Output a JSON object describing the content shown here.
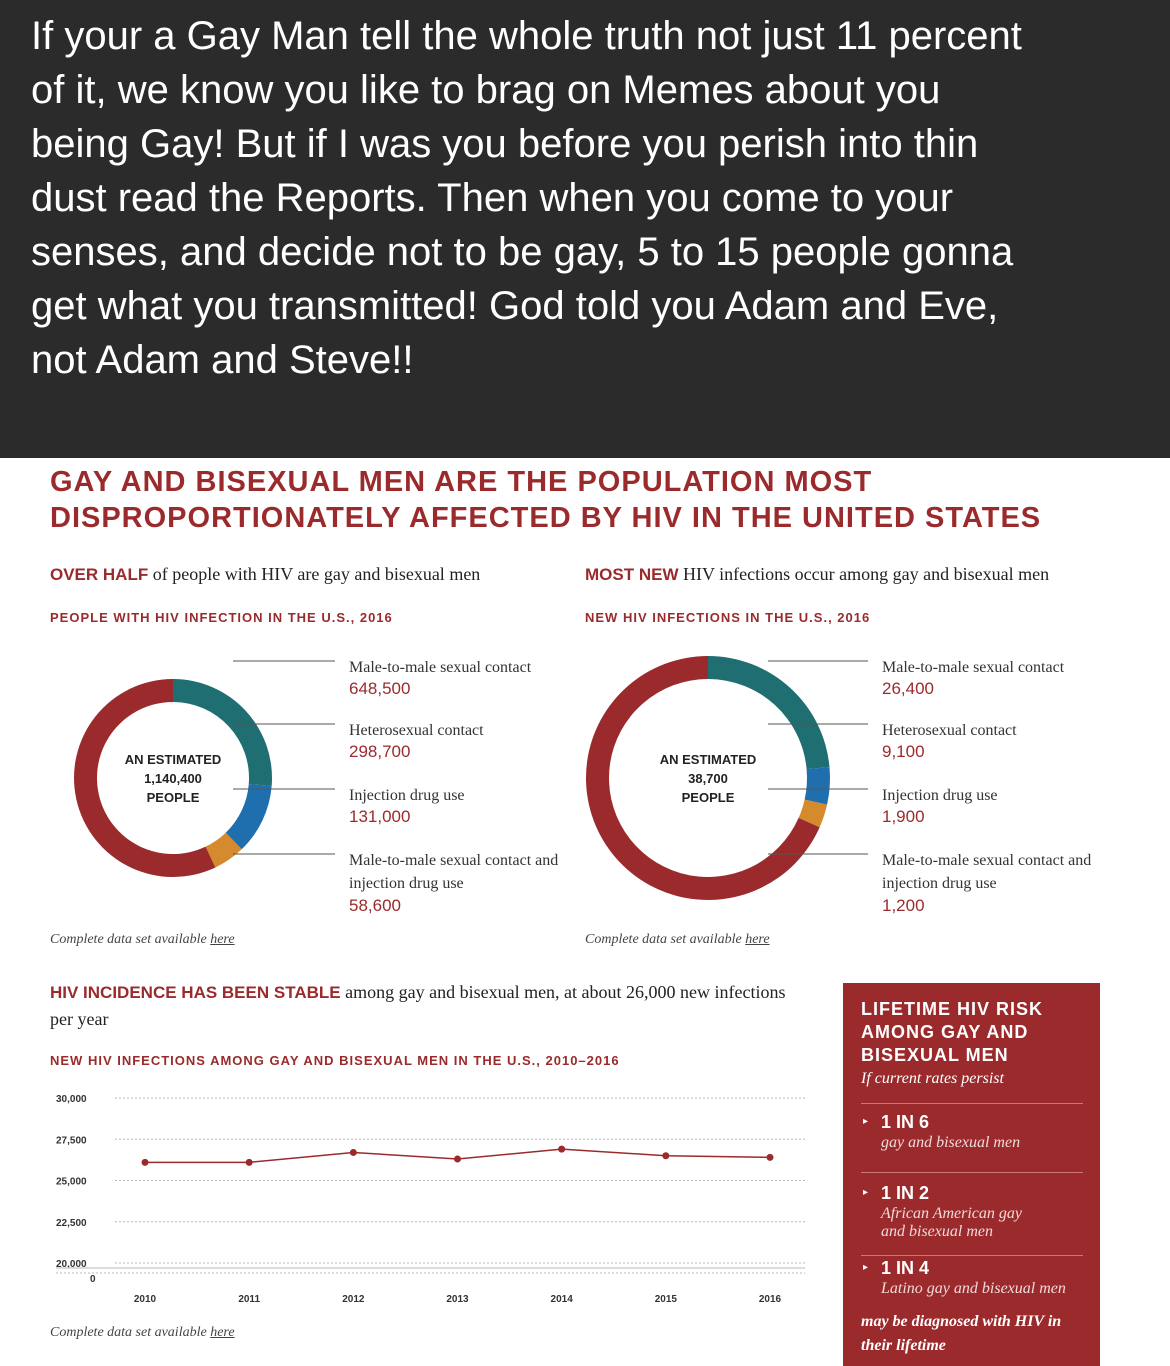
{
  "post": {
    "lines": [
      "If your a Gay Man tell the whole truth not just 11 percent",
      "of it, we know you like to brag on Memes about you",
      "being Gay! But if I was you before you perish into thin",
      "dust read the Reports. Then when you come to your",
      "senses, and decide not to be gay, 5 to 15 people gonna",
      "get what you transmitted! God told you Adam and Eve,",
      "not Adam and Steve!!"
    ]
  },
  "infographic": {
    "title": [
      "GAY AND BISEXUAL MEN ARE THE POPULATION MOST",
      "DISPROPORTIONATELY AFFECTED BY HIV IN THE UNITED STATES"
    ]
  },
  "chart_data": [
    {
      "type": "donut",
      "headline_bold": "OVER HALF",
      "headline_rest": "of people with HIV are gay and bisexual men",
      "title": "PEOPLE WITH HIV INFECTION IN THE U.S., 2016",
      "center_label": [
        "AN ESTIMATED",
        "1,140,400",
        "PEOPLE"
      ],
      "categories": [
        "Male-to-male sexual contact",
        "Heterosexual contact",
        "Injection drug use",
        "Male-to-male sexual contact and injection drug use"
      ],
      "values": [
        648500,
        298700,
        131000,
        58600
      ],
      "value_labels": [
        "648,500",
        "298,700",
        "131,000",
        "58,600"
      ],
      "colors": [
        "#9b2a2c",
        "#1f6e72",
        "#1f6fae",
        "#d58a2d"
      ],
      "footnote": "Complete data set available",
      "footnote_link": "here"
    },
    {
      "type": "donut",
      "headline_bold": "MOST NEW",
      "headline_rest": "HIV infections occur among gay and bisexual men",
      "title": "NEW HIV INFECTIONS IN THE U.S., 2016",
      "center_label": [
        "AN ESTIMATED",
        "38,700",
        "PEOPLE"
      ],
      "categories": [
        "Male-to-male sexual contact",
        "Heterosexual contact",
        "Injection drug use",
        "Male-to-male sexual contact and injection drug use"
      ],
      "values": [
        26400,
        9100,
        1900,
        1200
      ],
      "value_labels": [
        "26,400",
        "9,100",
        "1,900",
        "1,200"
      ],
      "colors": [
        "#9b2a2c",
        "#1f6e72",
        "#1f6fae",
        "#d58a2d"
      ],
      "footnote": "Complete data set available",
      "footnote_link": "here"
    },
    {
      "type": "line",
      "headline_bold": "HIV INCIDENCE HAS BEEN STABLE",
      "headline_rest": "among gay and bisexual men, at about 26,000 new infections per year",
      "title": "NEW HIV INFECTIONS AMONG GAY AND BISEXUAL MEN IN THE U.S., 2010–2016",
      "categories": [
        "2010",
        "2011",
        "2012",
        "2013",
        "2014",
        "2015",
        "2016"
      ],
      "values": [
        26100,
        26100,
        26700,
        26300,
        26900,
        26500,
        26400
      ],
      "color": "#9b2a2c",
      "ylim": [
        20000,
        30000
      ],
      "yticks": [
        {
          "value": 20000,
          "label": "20,000"
        },
        {
          "value": 22500,
          "label": "22,500"
        },
        {
          "value": 25000,
          "label": "25,000"
        },
        {
          "value": 27500,
          "label": "27,500"
        },
        {
          "value": 30000,
          "label": "30,000"
        }
      ],
      "axis_break_tick": 0,
      "grid": true,
      "footnote": "Complete data set available",
      "footnote_link": "here"
    }
  ],
  "sidebar": {
    "title": [
      "LIFETIME HIV RISK",
      "AMONG GAY AND",
      "BISEXUAL MEN"
    ],
    "subtitle": "If current rates persist",
    "items": [
      {
        "ratio": "1 IN 6",
        "group": "gay and bisexual men"
      },
      {
        "ratio": "1 IN 2",
        "group": "African American gay and bisexual men"
      },
      {
        "ratio": "1 IN 4",
        "group": "Latino gay and bisexual men"
      }
    ],
    "footer": "may be diagnosed with HIV in their lifetime"
  }
}
